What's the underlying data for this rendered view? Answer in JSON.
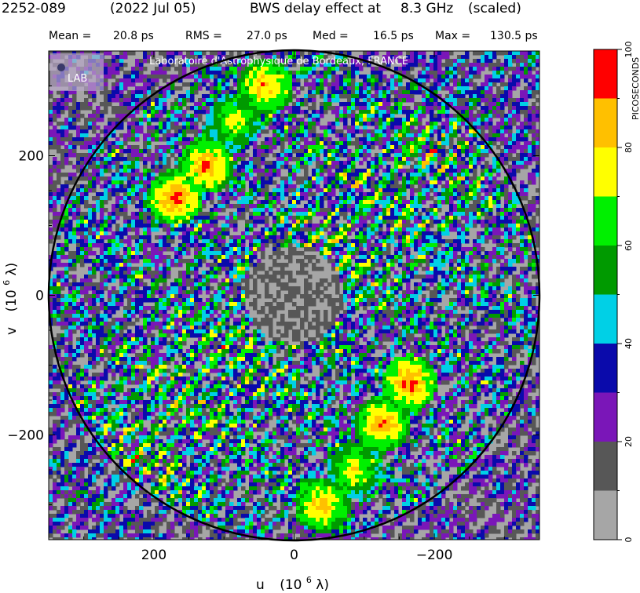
{
  "title": {
    "source": "2252-089",
    "date": "(2022 Jul 05)",
    "description": "BWS delay effect at",
    "frequency": "8.3 GHz",
    "scaling": "(scaled)"
  },
  "stats": {
    "mean_label": "Mean =",
    "mean_value": "20.8 ps",
    "rms_label": "RMS =",
    "rms_value": "27.0 ps",
    "med_label": "Med =",
    "med_value": "16.5 ps",
    "max_label": "Max =",
    "max_value": "130.5 ps"
  },
  "watermark": {
    "text": "Laboratoire d'Astrophysique de Bordeaux, FRANCE",
    "logo": "LAB"
  },
  "colorbar": {
    "label": "PICOSECONDS",
    "ticks": [
      "0",
      "20",
      "40",
      "60",
      "80",
      "100"
    ],
    "tick_values": [
      0,
      20,
      40,
      60,
      80,
      100
    ],
    "bins": [
      {
        "from": 0,
        "to": 10,
        "color": "#a6a6a6"
      },
      {
        "from": 10,
        "to": 20,
        "color": "#575757"
      },
      {
        "from": 20,
        "to": 30,
        "color": "#7a16b8"
      },
      {
        "from": 30,
        "to": 40,
        "color": "#0a0aab"
      },
      {
        "from": 40,
        "to": 50,
        "color": "#00d0e6"
      },
      {
        "from": 50,
        "to": 60,
        "color": "#009a00"
      },
      {
        "from": 60,
        "to": 70,
        "color": "#00f000"
      },
      {
        "from": 70,
        "to": 80,
        "color": "#ffff00"
      },
      {
        "from": 80,
        "to": 90,
        "color": "#ffc000"
      },
      {
        "from": 90,
        "to": 100,
        "color": "#ff0000"
      }
    ]
  },
  "chart_data": {
    "type": "heatmap",
    "title": "2252-089 (2022 Jul 05) BWS delay effect at 8.3 GHz (scaled)",
    "xlabel": "u (10^6 λ)",
    "ylabel": "v (10^6 λ)",
    "x_label_main": "u",
    "y_label_main": "v",
    "label_unit": "(10",
    "label_exp": "6",
    "label_lambda": " λ)",
    "xlim": [
      350,
      -350
    ],
    "ylim": [
      -350,
      350
    ],
    "xticks": [
      200,
      0,
      -200
    ],
    "xtick_labels": [
      "200",
      "0",
      "−200"
    ],
    "yticks": [
      -200,
      0,
      200
    ],
    "ytick_labels": [
      "−200",
      "0",
      "200"
    ],
    "value_unit": "PICOSECONDS",
    "value_range": [
      0,
      100
    ],
    "circle_radius": 350,
    "hot_spots": [
      {
        "u": 170,
        "v": 140,
        "value": 95
      },
      {
        "u": 125,
        "v": 185,
        "value": 92
      },
      {
        "u": 40,
        "v": 300,
        "value": 90
      },
      {
        "u": 85,
        "v": 250,
        "value": 80
      },
      {
        "u": -165,
        "v": -125,
        "value": 95
      },
      {
        "u": -125,
        "v": -185,
        "value": 92
      },
      {
        "u": -40,
        "v": -300,
        "value": 90
      },
      {
        "u": -85,
        "v": -250,
        "value": 82
      }
    ]
  }
}
